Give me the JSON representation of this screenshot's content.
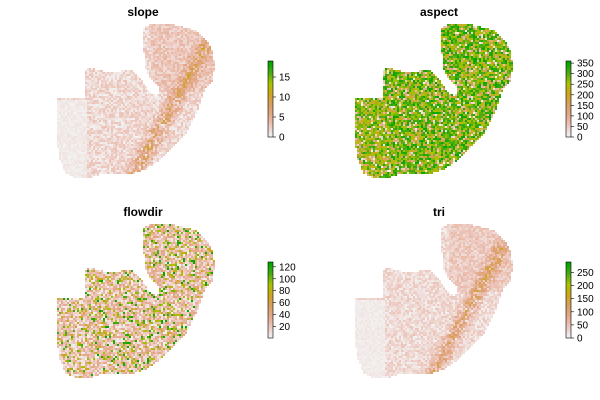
{
  "colors": {
    "ramp": [
      "#f2f2f2",
      "#edc8bf",
      "#e4a98b",
      "#d9a060",
      "#cfa51a",
      "#a8c400",
      "#4aab13",
      "#00a600"
    ]
  },
  "chart_data": [
    {
      "type": "heatmap",
      "title": "slope",
      "legend": {
        "type": "colorbar",
        "placement": "right",
        "ticks": [
          0,
          5,
          10,
          15
        ],
        "range": [
          0,
          19
        ]
      },
      "visual_intensity": 0.18
    },
    {
      "type": "heatmap",
      "title": "aspect",
      "legend": {
        "type": "colorbar",
        "placement": "right",
        "ticks": [
          0,
          50,
          100,
          150,
          200,
          250,
          300,
          350
        ],
        "range": [
          0,
          360
        ]
      },
      "visual_intensity": 0.78
    },
    {
      "type": "heatmap",
      "title": "flowdir",
      "legend": {
        "type": "colorbar",
        "placement": "right",
        "ticks": [
          20,
          40,
          60,
          80,
          100,
          120
        ],
        "range": [
          1,
          128
        ]
      },
      "visual_intensity": 0.42
    },
    {
      "type": "heatmap",
      "title": "tri",
      "legend": {
        "type": "colorbar",
        "placement": "right",
        "ticks": [
          0,
          50,
          100,
          150,
          200,
          250
        ],
        "range": [
          0,
          290
        ]
      },
      "visual_intensity": 0.16
    }
  ]
}
